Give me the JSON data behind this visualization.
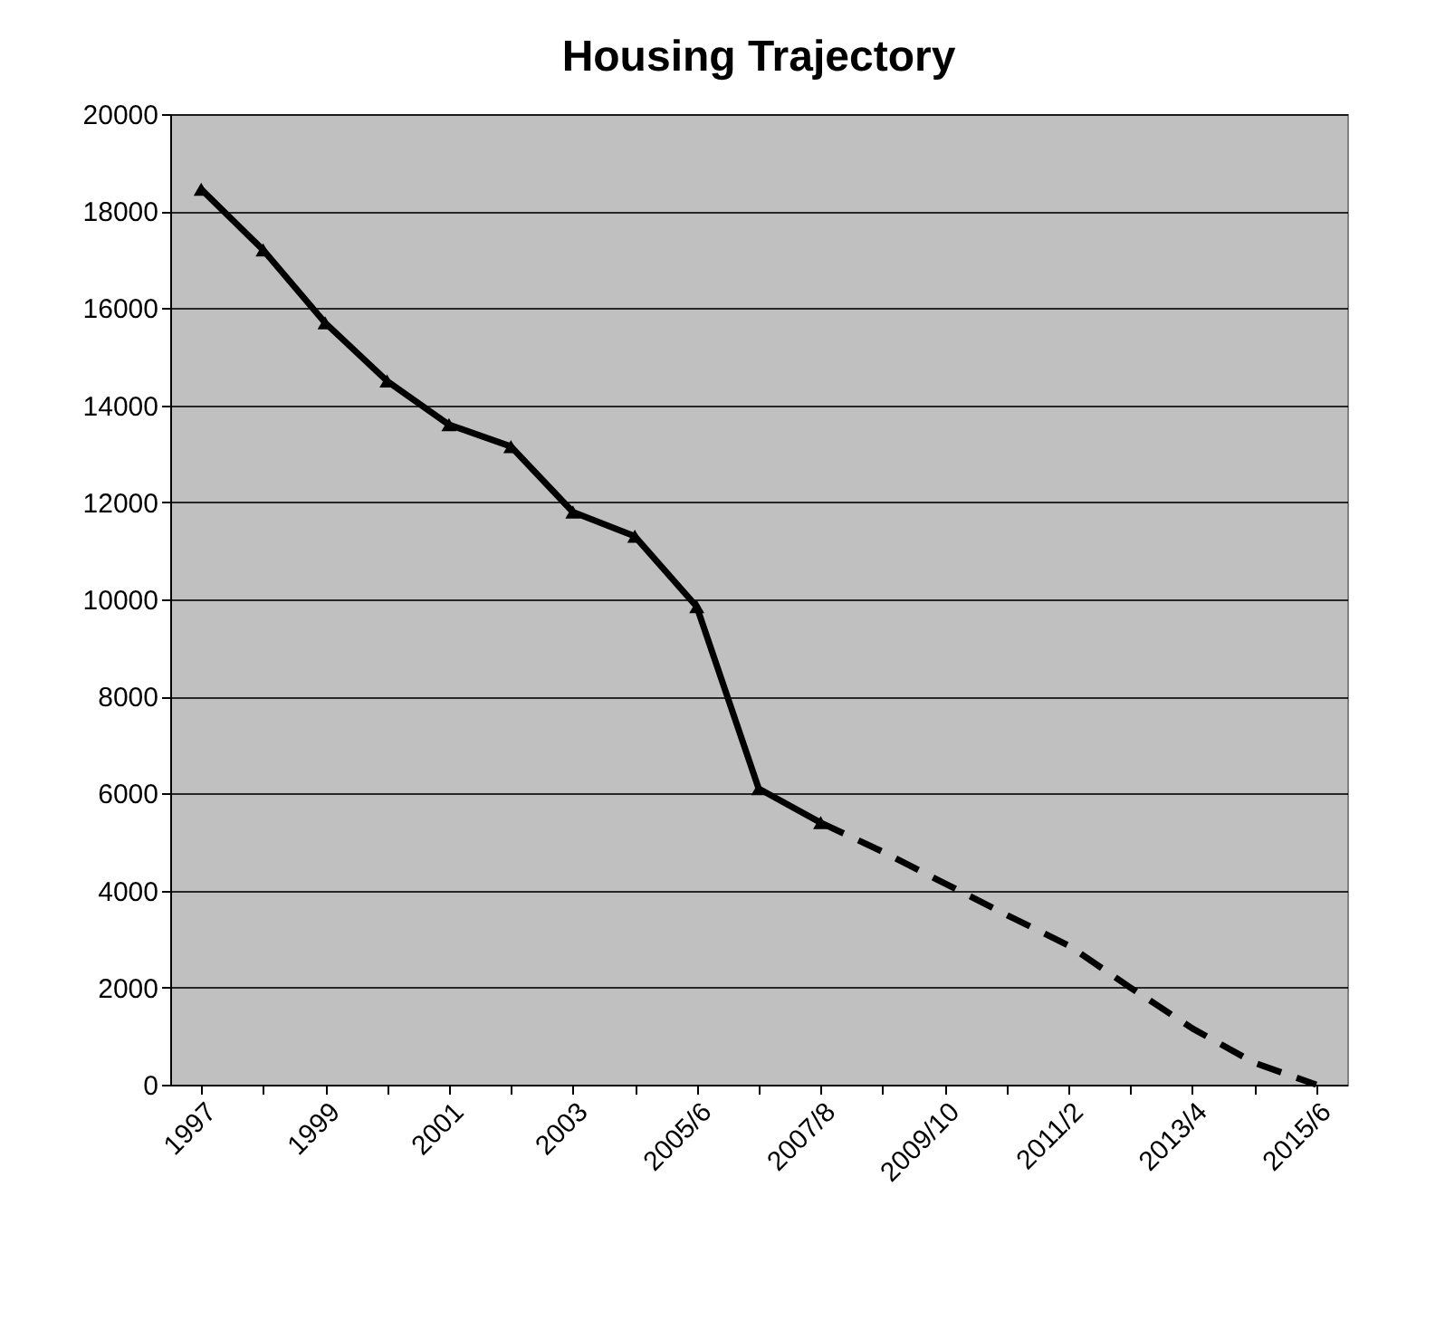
{
  "chart_data": {
    "type": "line",
    "title": "Housing Trajectory",
    "categories": [
      "1997",
      null,
      "1999",
      null,
      "2001",
      null,
      "2003",
      null,
      "2005/6",
      null,
      "2007/8",
      null,
      "2009/10",
      null,
      "2011/2",
      null,
      "2013/4",
      null,
      "2015/6"
    ],
    "series": [
      {
        "color": "#000000",
        "marker": "triangle",
        "line_style": "solid",
        "values": [
          18450,
          17200,
          15700,
          14500,
          13600,
          13150,
          11800,
          11300,
          9850,
          6100,
          5400,
          null,
          null,
          null,
          null,
          null,
          null,
          null,
          null
        ]
      },
      {
        "color": "#000000",
        "marker": "none",
        "line_style": "dashed",
        "values": [
          null,
          null,
          null,
          null,
          null,
          null,
          null,
          null,
          null,
          null,
          5400,
          4800,
          4150,
          3500,
          2870,
          2000,
          1160,
          450,
          0
        ]
      }
    ],
    "ylim": [
      0,
      20000
    ],
    "yticks": [
      0,
      2000,
      4000,
      6000,
      8000,
      10000,
      12000,
      14000,
      16000,
      18000,
      20000
    ],
    "grid": "y"
  }
}
